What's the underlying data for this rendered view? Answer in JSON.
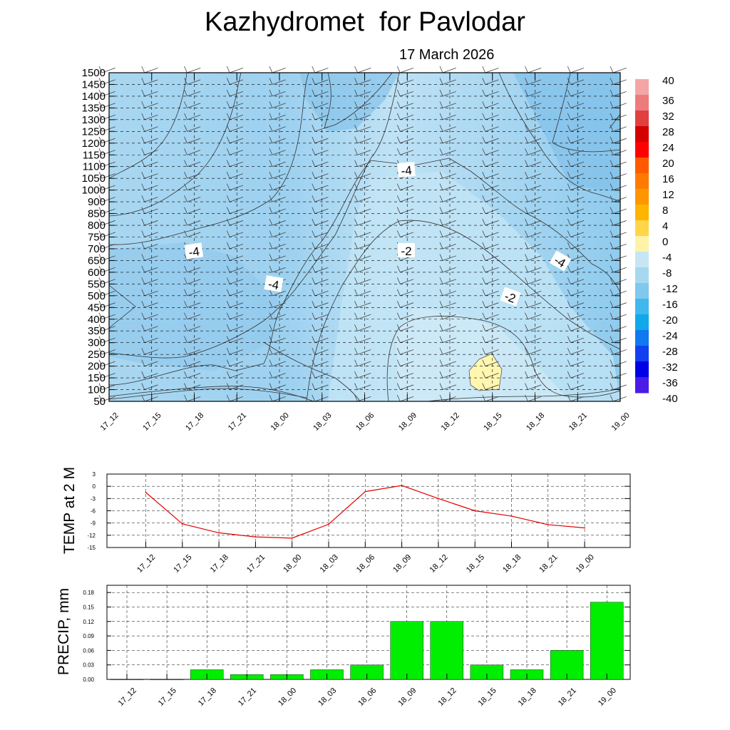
{
  "header": {
    "title": "Kazhydromet  for Pavlodar",
    "date": "17 March 2026"
  },
  "chart_data": [
    {
      "type": "heatmap",
      "name": "temperature cross-section",
      "x": [
        "17_12",
        "17_15",
        "17_18",
        "17_21",
        "18_00",
        "18_03",
        "18_06",
        "18_09",
        "18_12",
        "18_15",
        "18_18",
        "18_21",
        "19_00"
      ],
      "y_ticks": [
        50,
        100,
        150,
        200,
        250,
        300,
        350,
        400,
        450,
        500,
        550,
        600,
        650,
        700,
        750,
        800,
        850,
        900,
        1000,
        1050,
        1100,
        1150,
        1200,
        1250,
        1300,
        1350,
        1400,
        1450,
        1500
      ],
      "contour_labels": [
        "-4",
        "-4",
        "-4",
        "-2",
        "-2",
        "-4"
      ],
      "colorbar": {
        "labels": [
          "40",
          "36",
          "32",
          "28",
          "24",
          "20",
          "16",
          "12",
          "8",
          "4",
          "0",
          "-4",
          "-8",
          "-12",
          "-16",
          "-20",
          "-24",
          "-28",
          "-32",
          "-36",
          "-40"
        ],
        "colors": [
          "#f4a6a6",
          "#ec7c7c",
          "#e04040",
          "#d40000",
          "#ff0000",
          "#ff5a00",
          "#ff7a00",
          "#ff9600",
          "#ffb400",
          "#ffd54a",
          "#fff3a8",
          "#c6e6f5",
          "#a8d8f0",
          "#80c8ee",
          "#40b8ee",
          "#10a8e8",
          "#1078f0",
          "#1040f0",
          "#0000e6",
          "#4a1ce6",
          "#8c2ce6"
        ]
      },
      "grid": true
    },
    {
      "type": "line",
      "name": "temperature",
      "ylabel": "TEMP at 2 M",
      "x": [
        "17_12",
        "17_15",
        "17_18",
        "17_21",
        "18_00",
        "18_03",
        "18_06",
        "18_09",
        "18_12",
        "18_15",
        "18_18",
        "18_21",
        "19_00"
      ],
      "values": [
        -1.5,
        -9.2,
        -11.4,
        -12.4,
        -12.7,
        -9.3,
        -1.3,
        0.2,
        -3.0,
        -6.0,
        -7.3,
        -9.4,
        -10.2
      ],
      "y_ticks": [
        "3",
        "0",
        "-3",
        "-6",
        "-9",
        "-12",
        "-15"
      ],
      "ylim": [
        -15,
        3
      ],
      "color": "#e60000",
      "grid": true
    },
    {
      "type": "bar",
      "name": "precipitation",
      "ylabel": "PRECIP, mm",
      "categories": [
        "17_12",
        "17_15",
        "17_18",
        "17_21",
        "18_00",
        "18_03",
        "18_06",
        "18_09",
        "18_12",
        "18_15",
        "18_18",
        "18_21",
        "19_00"
      ],
      "values": [
        0.0,
        0.0,
        0.02,
        0.01,
        0.01,
        0.02,
        0.03,
        0.12,
        0.12,
        0.03,
        0.02,
        0.06,
        0.16
      ],
      "y_ticks": [
        "0.00",
        "0.03",
        "0.06",
        "0.09",
        "0.12",
        "0.15",
        "0.18"
      ],
      "ylim": [
        0,
        0.195
      ],
      "color": "#00ee00",
      "grid": true
    }
  ]
}
